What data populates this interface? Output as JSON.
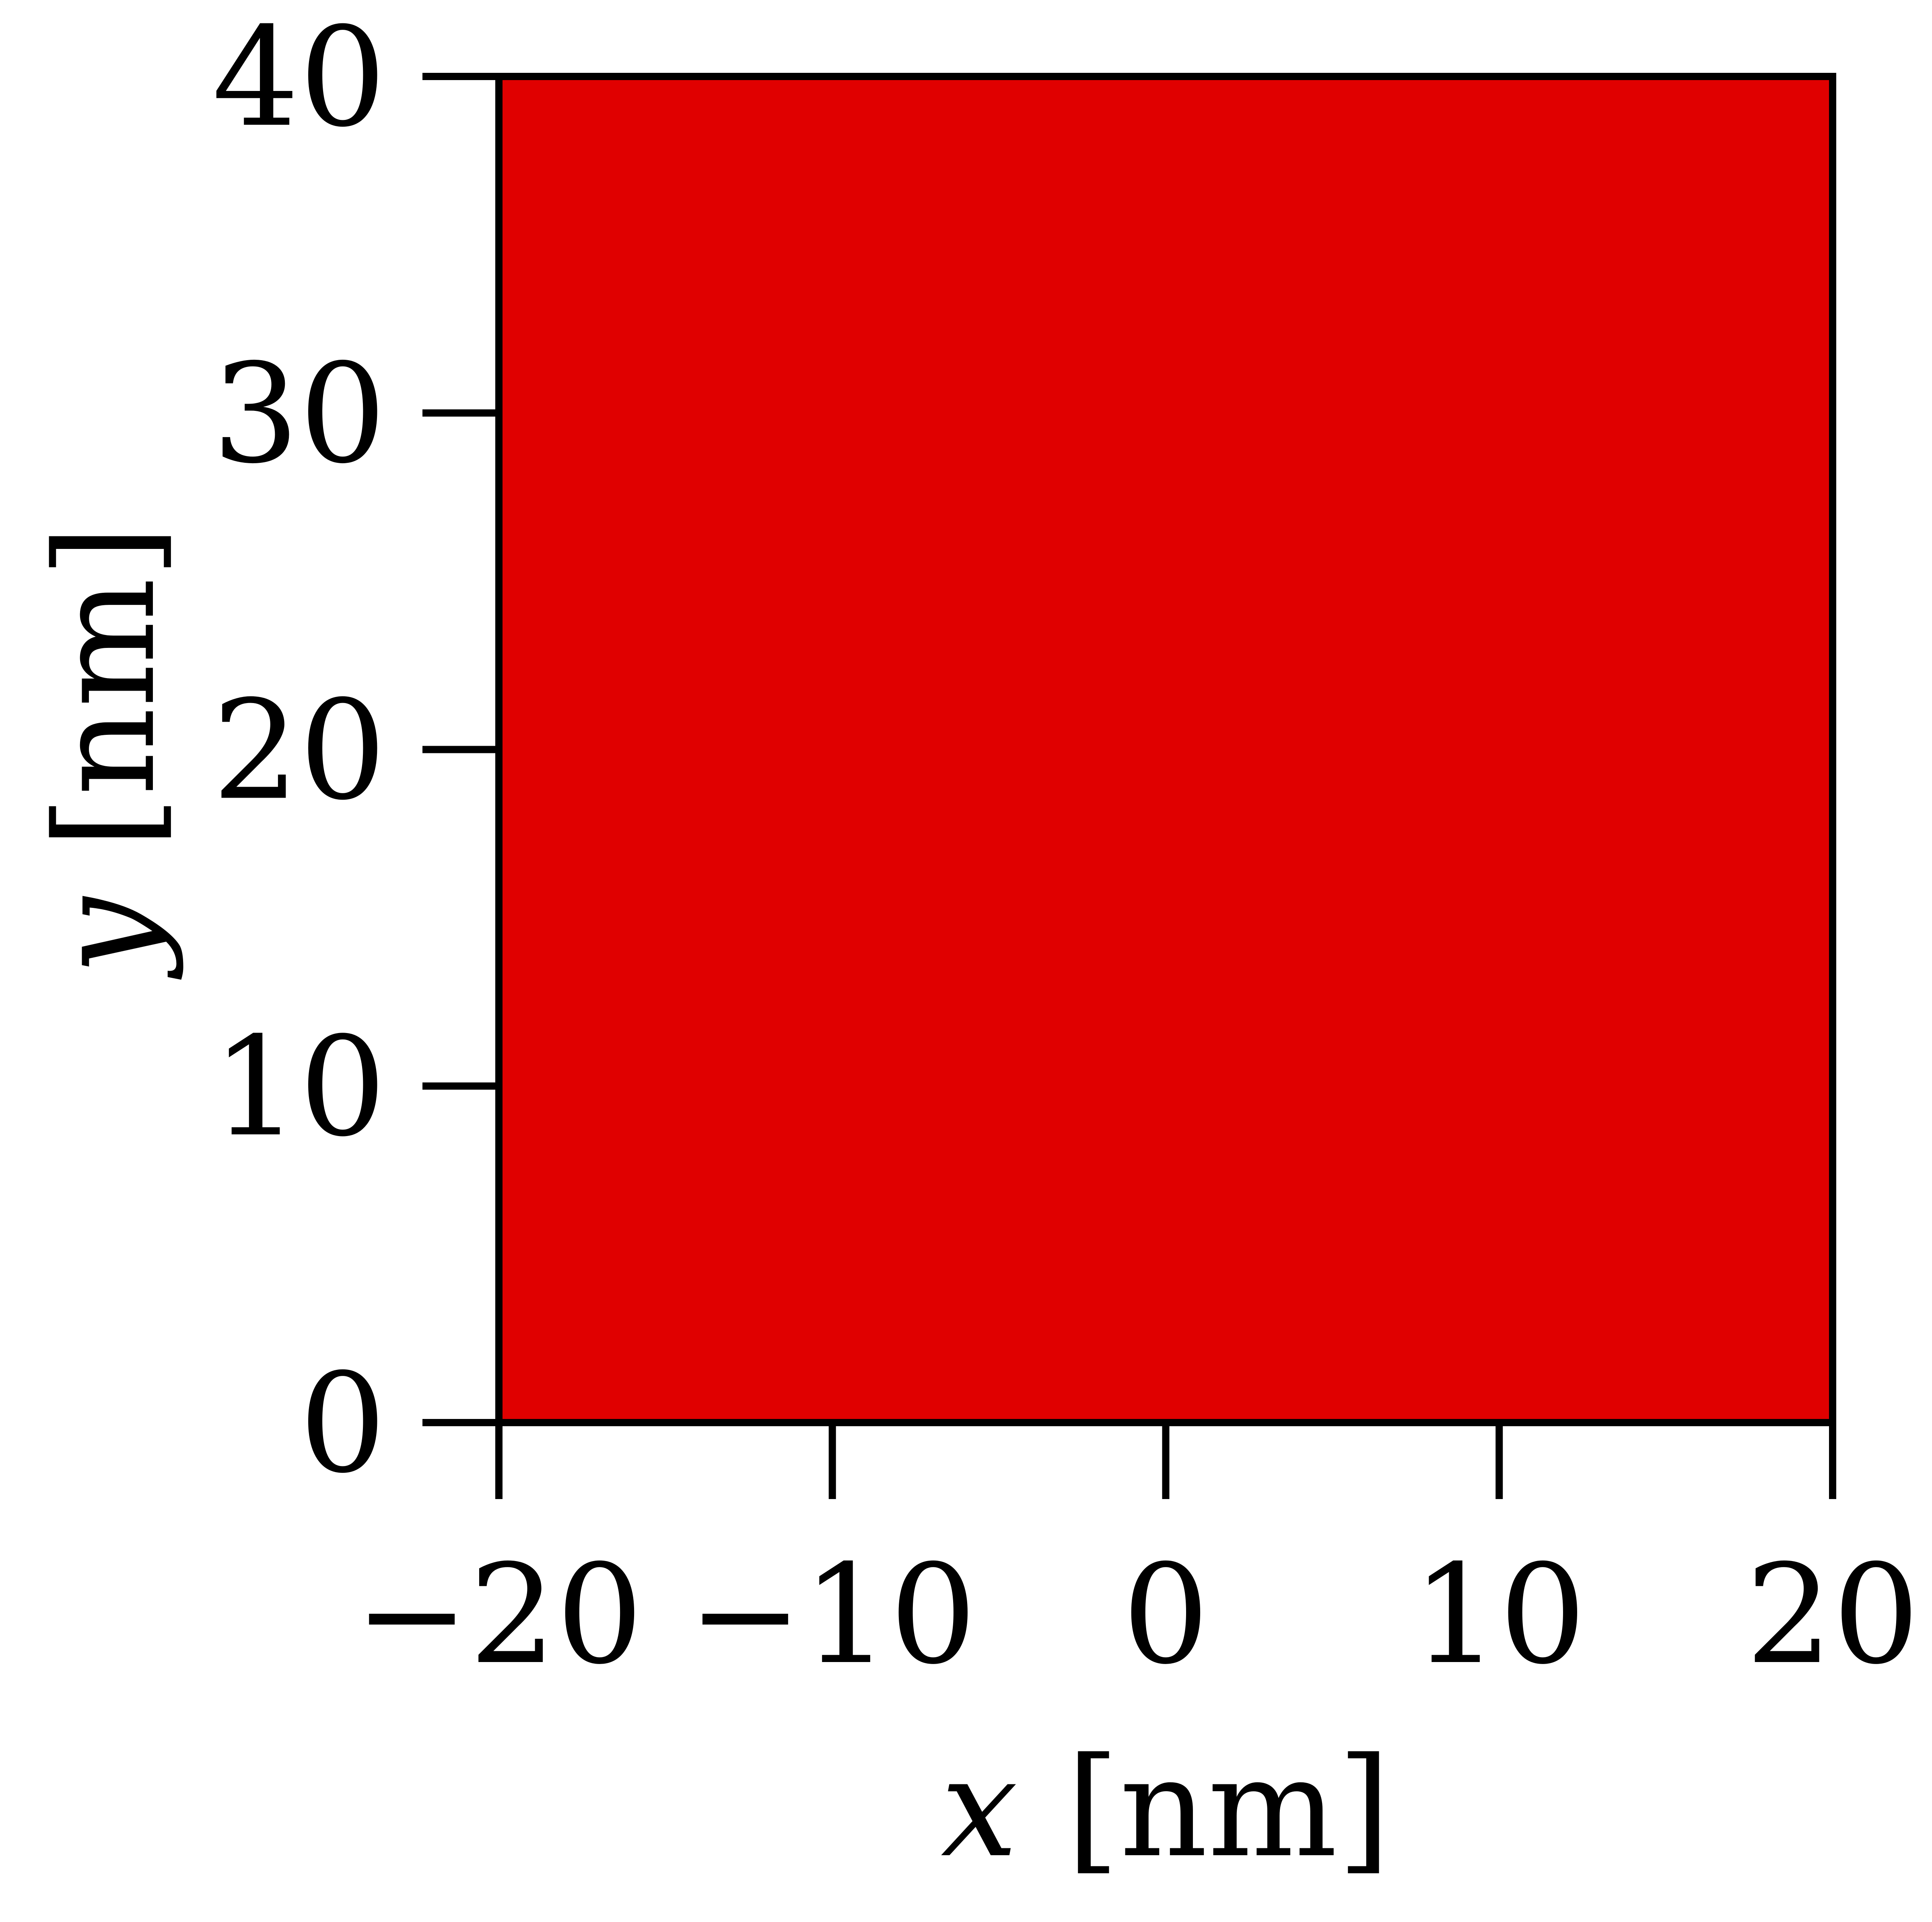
{
  "chart_data": {
    "type": "heatmap",
    "title": "",
    "xlabel": {
      "symbol": "x",
      "unit": "[nm]"
    },
    "ylabel": {
      "symbol": "y",
      "unit": "[nm]"
    },
    "xlim": [
      -20,
      20
    ],
    "ylim": [
      0,
      40
    ],
    "x_ticks": [
      -20,
      -10,
      0,
      10,
      20
    ],
    "y_ticks": [
      0,
      10,
      20,
      30,
      40
    ],
    "x_tick_labels": [
      "−20",
      "−10",
      "0",
      "10",
      "20"
    ],
    "y_tick_labels": [
      "0",
      "10",
      "20",
      "30",
      "40"
    ],
    "regions": [
      {
        "x_range": [
          -20,
          20
        ],
        "y_range": [
          0,
          40
        ],
        "color": "#e00000"
      }
    ],
    "grid": false,
    "legend": "none"
  },
  "colors": {
    "fill": "#e00000",
    "axes": "#000000",
    "background": "#ffffff"
  }
}
